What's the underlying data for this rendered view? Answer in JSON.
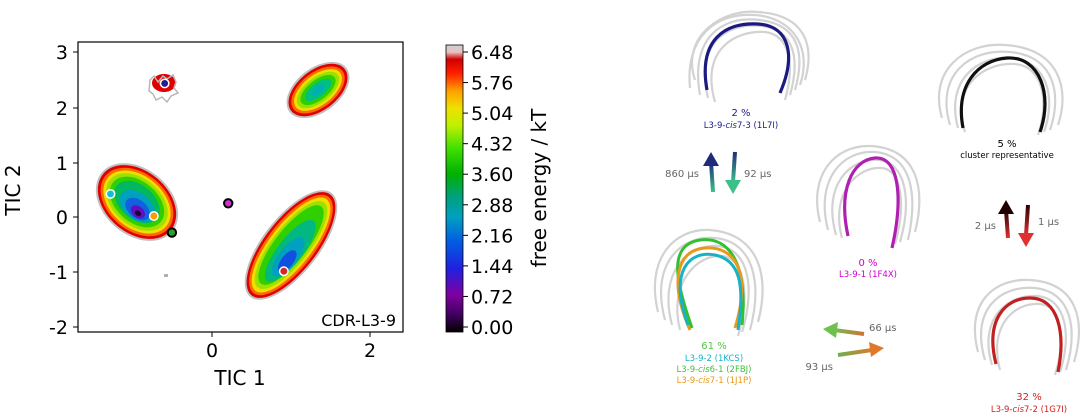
{
  "chart_data": {
    "type": "heatmap",
    "xlabel": "TIC 1",
    "ylabel": "TIC 2",
    "x_ticks": [
      "0",
      "2"
    ],
    "y_ticks": [
      "3",
      "2",
      "1",
      "0",
      "-1",
      "-2"
    ],
    "xlim": [
      -1.8,
      2.7
    ],
    "ylim": [
      -2.05,
      3.2
    ],
    "annotation": "CDR-L3-9",
    "colorbar": {
      "label": "free energy / kT",
      "ticks": [
        "6.48",
        "5.76",
        "5.04",
        "4.32",
        "3.60",
        "2.88",
        "2.16",
        "1.44",
        "0.72",
        "0.00"
      ],
      "range": [
        0.0,
        6.48
      ]
    },
    "markers": [
      {
        "state": "L3-9-cis7-3",
        "tic1": -0.6,
        "tic2": 2.45,
        "color": "#1f1f8f"
      },
      {
        "state": "L3-9-2",
        "tic1": -1.35,
        "tic2": 0.45,
        "color": "#17becf"
      },
      {
        "state": "L3-9-cis7-1",
        "tic1": -0.75,
        "tic2": 0.05,
        "color": "#ff9900"
      },
      {
        "state": "cluster representative",
        "tic1": -0.5,
        "tic2": -0.25,
        "color": "#2ca02c"
      },
      {
        "state": "L3-9-1",
        "tic1": 0.28,
        "tic2": 0.28,
        "color": "#cc33cc"
      },
      {
        "state": "L3-9-cis7-2",
        "tic1": 1.05,
        "tic2": -0.95,
        "color": "#d62728"
      }
    ]
  },
  "states": [
    {
      "id": "s1",
      "pct": "2 %",
      "label_pre": "L3-9-",
      "label_ital": "cis",
      "label_post": "7-3 (1L7I)",
      "color": "#1a1a8c"
    },
    {
      "id": "s2",
      "pct": "5 %",
      "label": "cluster representative",
      "color": "#000000"
    },
    {
      "id": "s3",
      "pct": "0 %",
      "label": "L3-9-1 (1F4X)",
      "color": "#cc00cc"
    },
    {
      "id": "s4",
      "pct": "61 %",
      "pct_color": "#5bbf4b",
      "lines": [
        {
          "pre": "L3-9-2 (1KCS)",
          "color": "#17b2c8"
        },
        {
          "pre": "L3-9-",
          "ital": "cis",
          "post": "6-1 (2FBJ)",
          "color": "#3fbf3f"
        },
        {
          "pre": "L3-9-",
          "ital": "cis",
          "post": "7-1 (1J1P)",
          "color": "#e69a1a"
        }
      ]
    },
    {
      "id": "s5",
      "pct": "32 %",
      "label_pre": "L3-9-",
      "label_ital": "cis",
      "label_post": "7-2 (1G7I)",
      "color": "#d42020"
    }
  ],
  "transitions": [
    {
      "id": "t1",
      "label": "860 μs"
    },
    {
      "id": "t2",
      "label": "92 μs"
    },
    {
      "id": "t3",
      "label": "2 μs"
    },
    {
      "id": "t4",
      "label": "1 μs"
    },
    {
      "id": "t5",
      "label": "66 μs"
    },
    {
      "id": "t6",
      "label": "93 μs"
    }
  ]
}
